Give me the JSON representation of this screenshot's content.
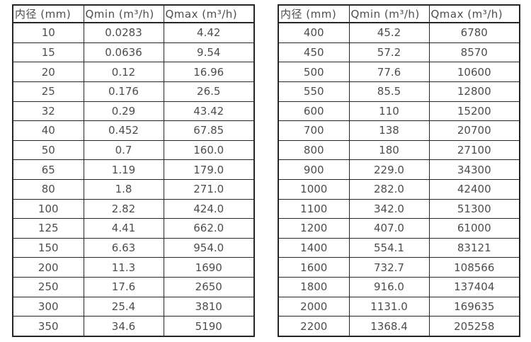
{
  "colors": {
    "border": "#262626",
    "text": "#4d4d4d",
    "background": "#ffffff"
  },
  "tables": [
    {
      "name": "small-diameters",
      "headers": [
        "内径 (mm)",
        "Qmin (m³/h)",
        "Qmax (m³/h)"
      ],
      "rows": [
        [
          "10",
          "0.0283",
          "4.42"
        ],
        [
          "15",
          "0.0636",
          "9.54"
        ],
        [
          "20",
          "0.12",
          "16.96"
        ],
        [
          "25",
          "0.176",
          "26.5"
        ],
        [
          "32",
          "0.29",
          "43.42"
        ],
        [
          "40",
          "0.452",
          "67.85"
        ],
        [
          "50",
          "0.7",
          "160.0"
        ],
        [
          "65",
          "1.19",
          "179.0"
        ],
        [
          "80",
          "1.8",
          "271.0"
        ],
        [
          "100",
          "2.82",
          "424.0"
        ],
        [
          "125",
          "4.41",
          "662.0"
        ],
        [
          "150",
          "6.63",
          "954.0"
        ],
        [
          "200",
          "11.3",
          "1690"
        ],
        [
          "250",
          "17.6",
          "2650"
        ],
        [
          "300",
          "25.4",
          "3810"
        ],
        [
          "350",
          "34.6",
          "5190"
        ]
      ]
    },
    {
      "name": "large-diameters",
      "headers": [
        "内径 (mm)",
        "Qmin (m³/h)",
        "Qmax (m³/h)"
      ],
      "rows": [
        [
          "400",
          "45.2",
          "6780"
        ],
        [
          "450",
          "57.2",
          "8570"
        ],
        [
          "500",
          "77.6",
          "10600"
        ],
        [
          "550",
          "85.5",
          "12800"
        ],
        [
          "600",
          "110",
          "15200"
        ],
        [
          "700",
          "138",
          "20700"
        ],
        [
          "800",
          "180",
          "27100"
        ],
        [
          "900",
          "229.0",
          "34300"
        ],
        [
          "1000",
          "282.0",
          "42400"
        ],
        [
          "1100",
          "342.0",
          "51300"
        ],
        [
          "1200",
          "407.0",
          "61000"
        ],
        [
          "1400",
          "554.1",
          "83121"
        ],
        [
          "1600",
          "732.7",
          "108566"
        ],
        [
          "1800",
          "916.0",
          "137404"
        ],
        [
          "2000",
          "1131.0",
          "169635"
        ],
        [
          "2200",
          "1368.4",
          "205258"
        ]
      ]
    }
  ]
}
